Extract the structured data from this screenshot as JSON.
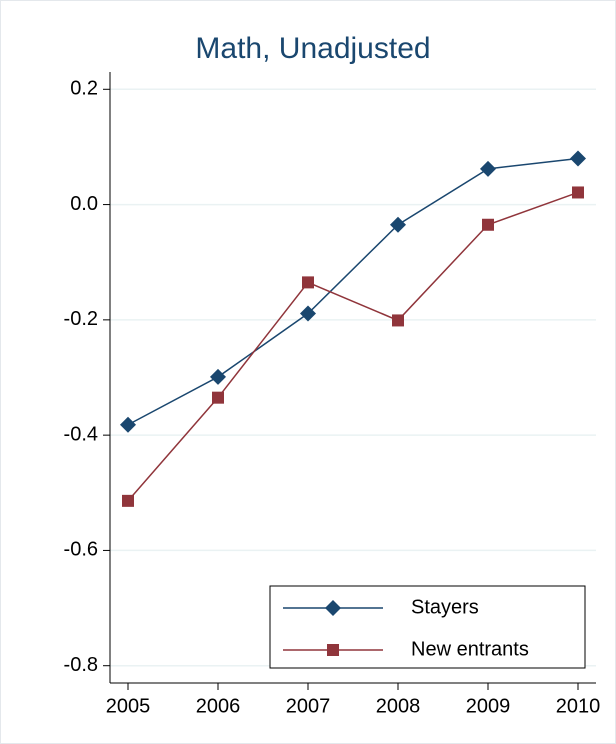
{
  "chart_data": {
    "type": "line",
    "title": "Math, Unadjusted",
    "x": [
      2005,
      2006,
      2007,
      2008,
      2009,
      2010
    ],
    "xlim": [
      2004.8,
      2010.2
    ],
    "xticks": [
      2005,
      2006,
      2007,
      2008,
      2009,
      2010
    ],
    "ylim": [
      -0.83,
      0.23
    ],
    "yticks": [
      0.2,
      {
        "value": 0,
        "label": "0.0"
      },
      -0.2,
      -0.4,
      -0.6,
      -0.8
    ],
    "grid": true,
    "legend": "lower right",
    "series": [
      {
        "name": "Stayers",
        "color": "#1a476f",
        "marker": "diamond",
        "values": [
          -0.382,
          -0.299,
          -0.189,
          -0.035,
          0.062,
          0.08
        ]
      },
      {
        "name": "New entrants",
        "color": "#90353b",
        "marker": "square",
        "values": [
          -0.514,
          -0.335,
          -0.135,
          -0.201,
          -0.035,
          0.021
        ]
      }
    ]
  }
}
